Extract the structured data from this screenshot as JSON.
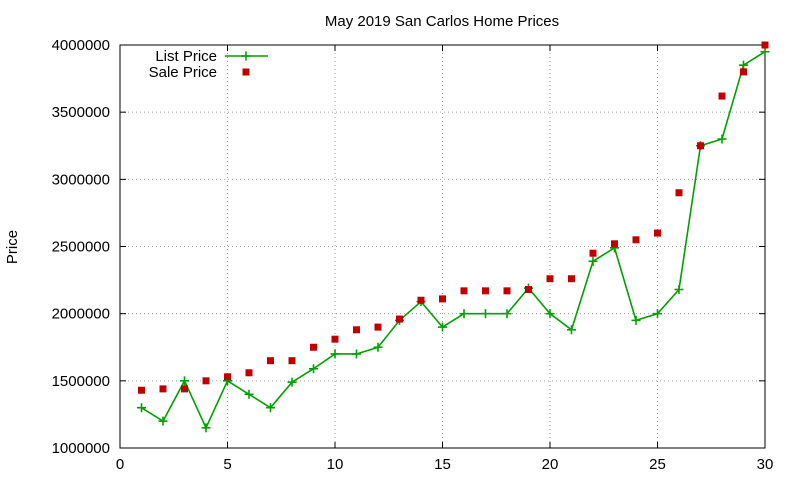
{
  "chart_data": {
    "type": "line",
    "title": "May 2019 San Carlos Home Prices",
    "xlabel": "",
    "ylabel": "Price",
    "xlim": [
      0,
      30
    ],
    "ylim": [
      1000000,
      4000000
    ],
    "x_ticks": [
      0,
      5,
      10,
      15,
      20,
      25,
      30
    ],
    "y_ticks": [
      1000000,
      1500000,
      2000000,
      2500000,
      3000000,
      3500000,
      4000000
    ],
    "x_tick_labels": [
      "0",
      "5",
      "10",
      "15",
      "20",
      "25",
      "30"
    ],
    "y_tick_labels": [
      "1000000",
      "1500000",
      "2000000",
      "2500000",
      "3000000",
      "3500000",
      "4000000"
    ],
    "grid": true,
    "legend": "top-left",
    "x": [
      1,
      2,
      3,
      4,
      5,
      6,
      7,
      8,
      9,
      10,
      11,
      12,
      13,
      14,
      15,
      16,
      17,
      18,
      19,
      20,
      21,
      22,
      23,
      24,
      25,
      26,
      27,
      28,
      29,
      30
    ],
    "series": [
      {
        "name": "List Price",
        "style": "linespoints",
        "marker": "plus",
        "color": "#00a000",
        "values": [
          1300000,
          1200000,
          1500000,
          1150000,
          1500000,
          1400000,
          1300000,
          1490000,
          1590000,
          1700000,
          1700000,
          1750000,
          1950000,
          2090000,
          1900000,
          2000000,
          2000000,
          2000000,
          2190000,
          2000000,
          1880000,
          2390000,
          2490000,
          1950000,
          2000000,
          2180000,
          3250000,
          3300000,
          3850000,
          3950000
        ]
      },
      {
        "name": "Sale Price",
        "style": "points",
        "marker": "square",
        "color": "#c00000",
        "values": [
          1430000,
          1440000,
          1440000,
          1500000,
          1530000,
          1560000,
          1650000,
          1650000,
          1750000,
          1810000,
          1880000,
          1900000,
          1960000,
          2100000,
          2110000,
          2170000,
          2170000,
          2170000,
          2180000,
          2260000,
          2260000,
          2450000,
          2520000,
          2550000,
          2600000,
          2900000,
          3250000,
          3620000,
          3800000,
          4000000
        ]
      }
    ]
  }
}
